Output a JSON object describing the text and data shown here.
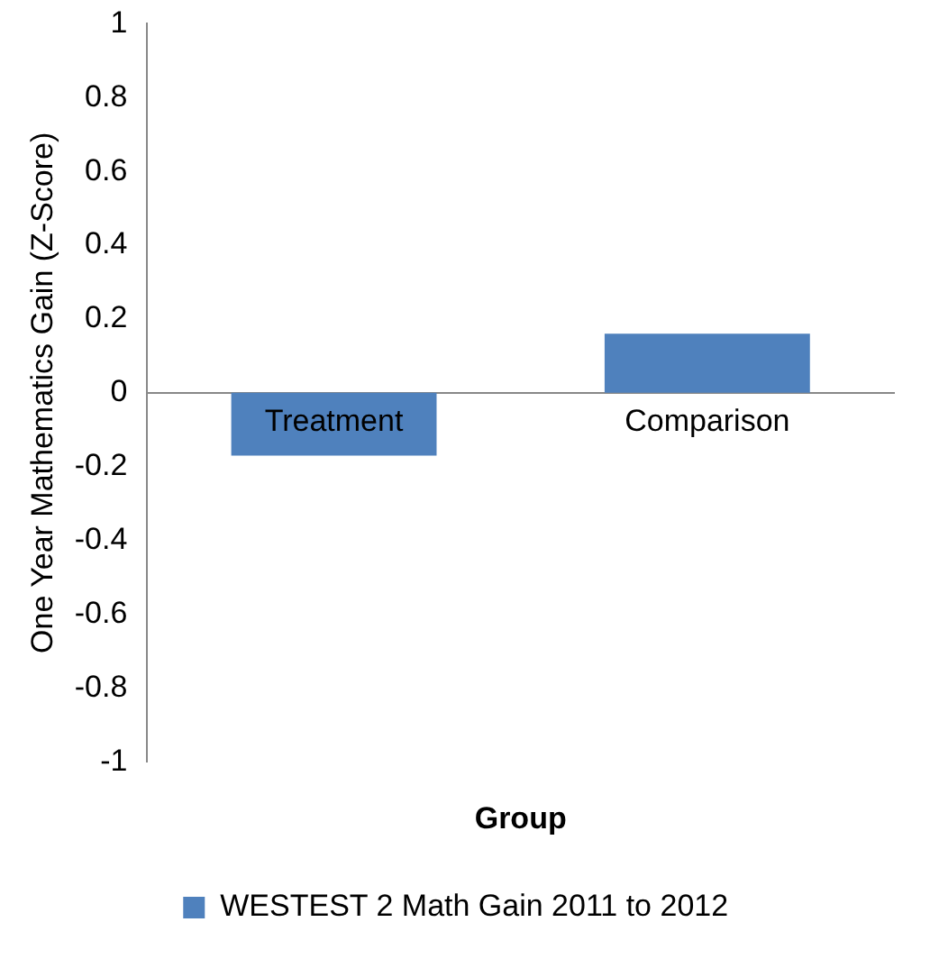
{
  "chart_data": {
    "type": "bar",
    "xlabel": "Group",
    "ylabel": "One Year Mathematics Gain (Z-Score)",
    "categories": [
      "Treatment",
      "Comparison"
    ],
    "series": [
      {
        "name": "WESTEST 2 Math Gain 2011 to 2012",
        "color": "#4f81bd",
        "values": [
          -0.17,
          0.16
        ]
      }
    ],
    "ylim": [
      -1,
      1
    ],
    "yticks": [
      -1,
      -0.8,
      -0.6,
      -0.4,
      -0.2,
      0,
      0.2,
      0.4,
      0.6,
      0.8,
      1
    ],
    "grid": false,
    "legend": "bottom"
  }
}
